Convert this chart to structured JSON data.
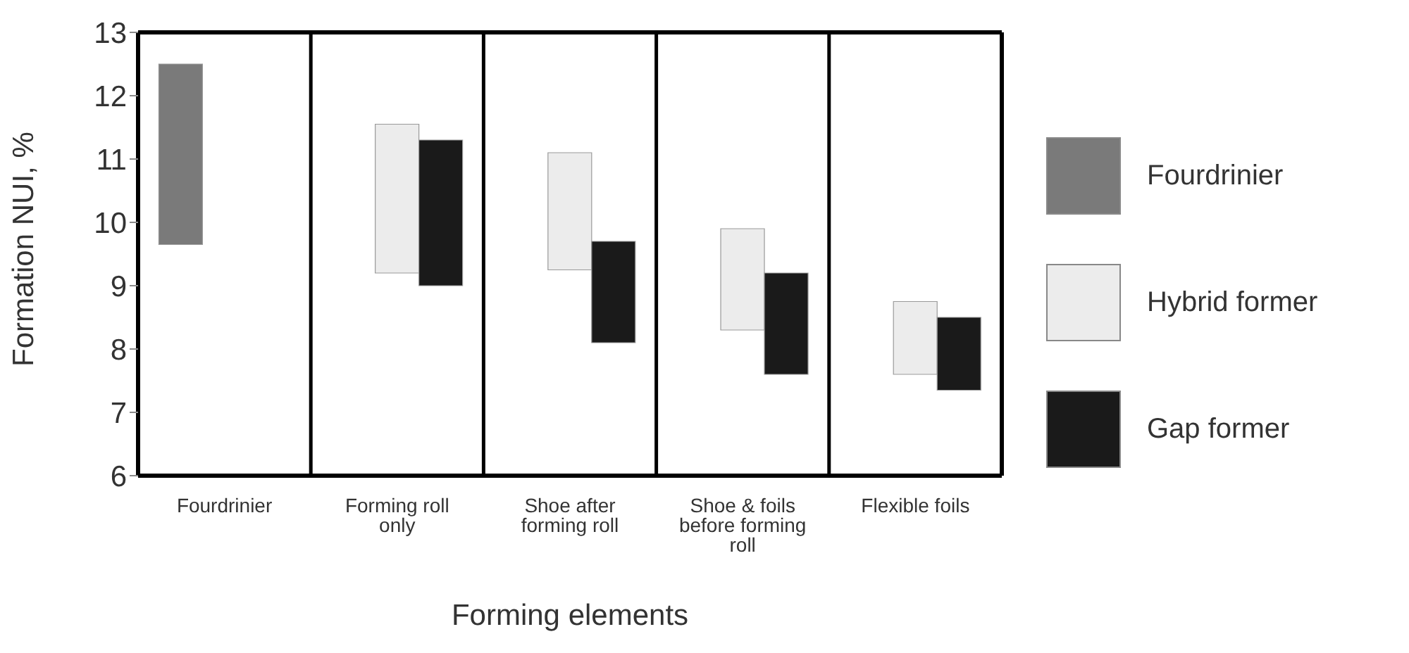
{
  "chart_data": {
    "type": "bar",
    "xlabel": "Forming elements",
    "ylabel": "Formation NUI, %",
    "categories": [
      "Fourdrinier",
      "Forming roll only",
      "Shoe after forming roll",
      "Shoe & foils before forming roll",
      "Flexible foils"
    ],
    "series": [
      {
        "name": "Fourdrinier",
        "color": "#7a7a7a",
        "base": [
          9.65,
          null,
          null,
          null,
          null
        ],
        "values": [
          2.85,
          null,
          null,
          null,
          null
        ]
      },
      {
        "name": "Hybrid former",
        "color": "#ececec",
        "base": [
          null,
          9.2,
          9.25,
          8.3,
          7.6
        ],
        "values": [
          null,
          2.35,
          1.85,
          1.6,
          1.15
        ]
      },
      {
        "name": "Gap former",
        "color": "#1a1a1a",
        "base": [
          null,
          9.0,
          8.1,
          7.6,
          7.35
        ],
        "values": [
          null,
          2.3,
          1.6,
          1.6,
          1.15
        ]
      }
    ],
    "ylim": [
      6,
      13
    ],
    "yticks": [
      6,
      7,
      8,
      9,
      10,
      11,
      12,
      13
    ],
    "grid": "x",
    "legend": "right"
  }
}
